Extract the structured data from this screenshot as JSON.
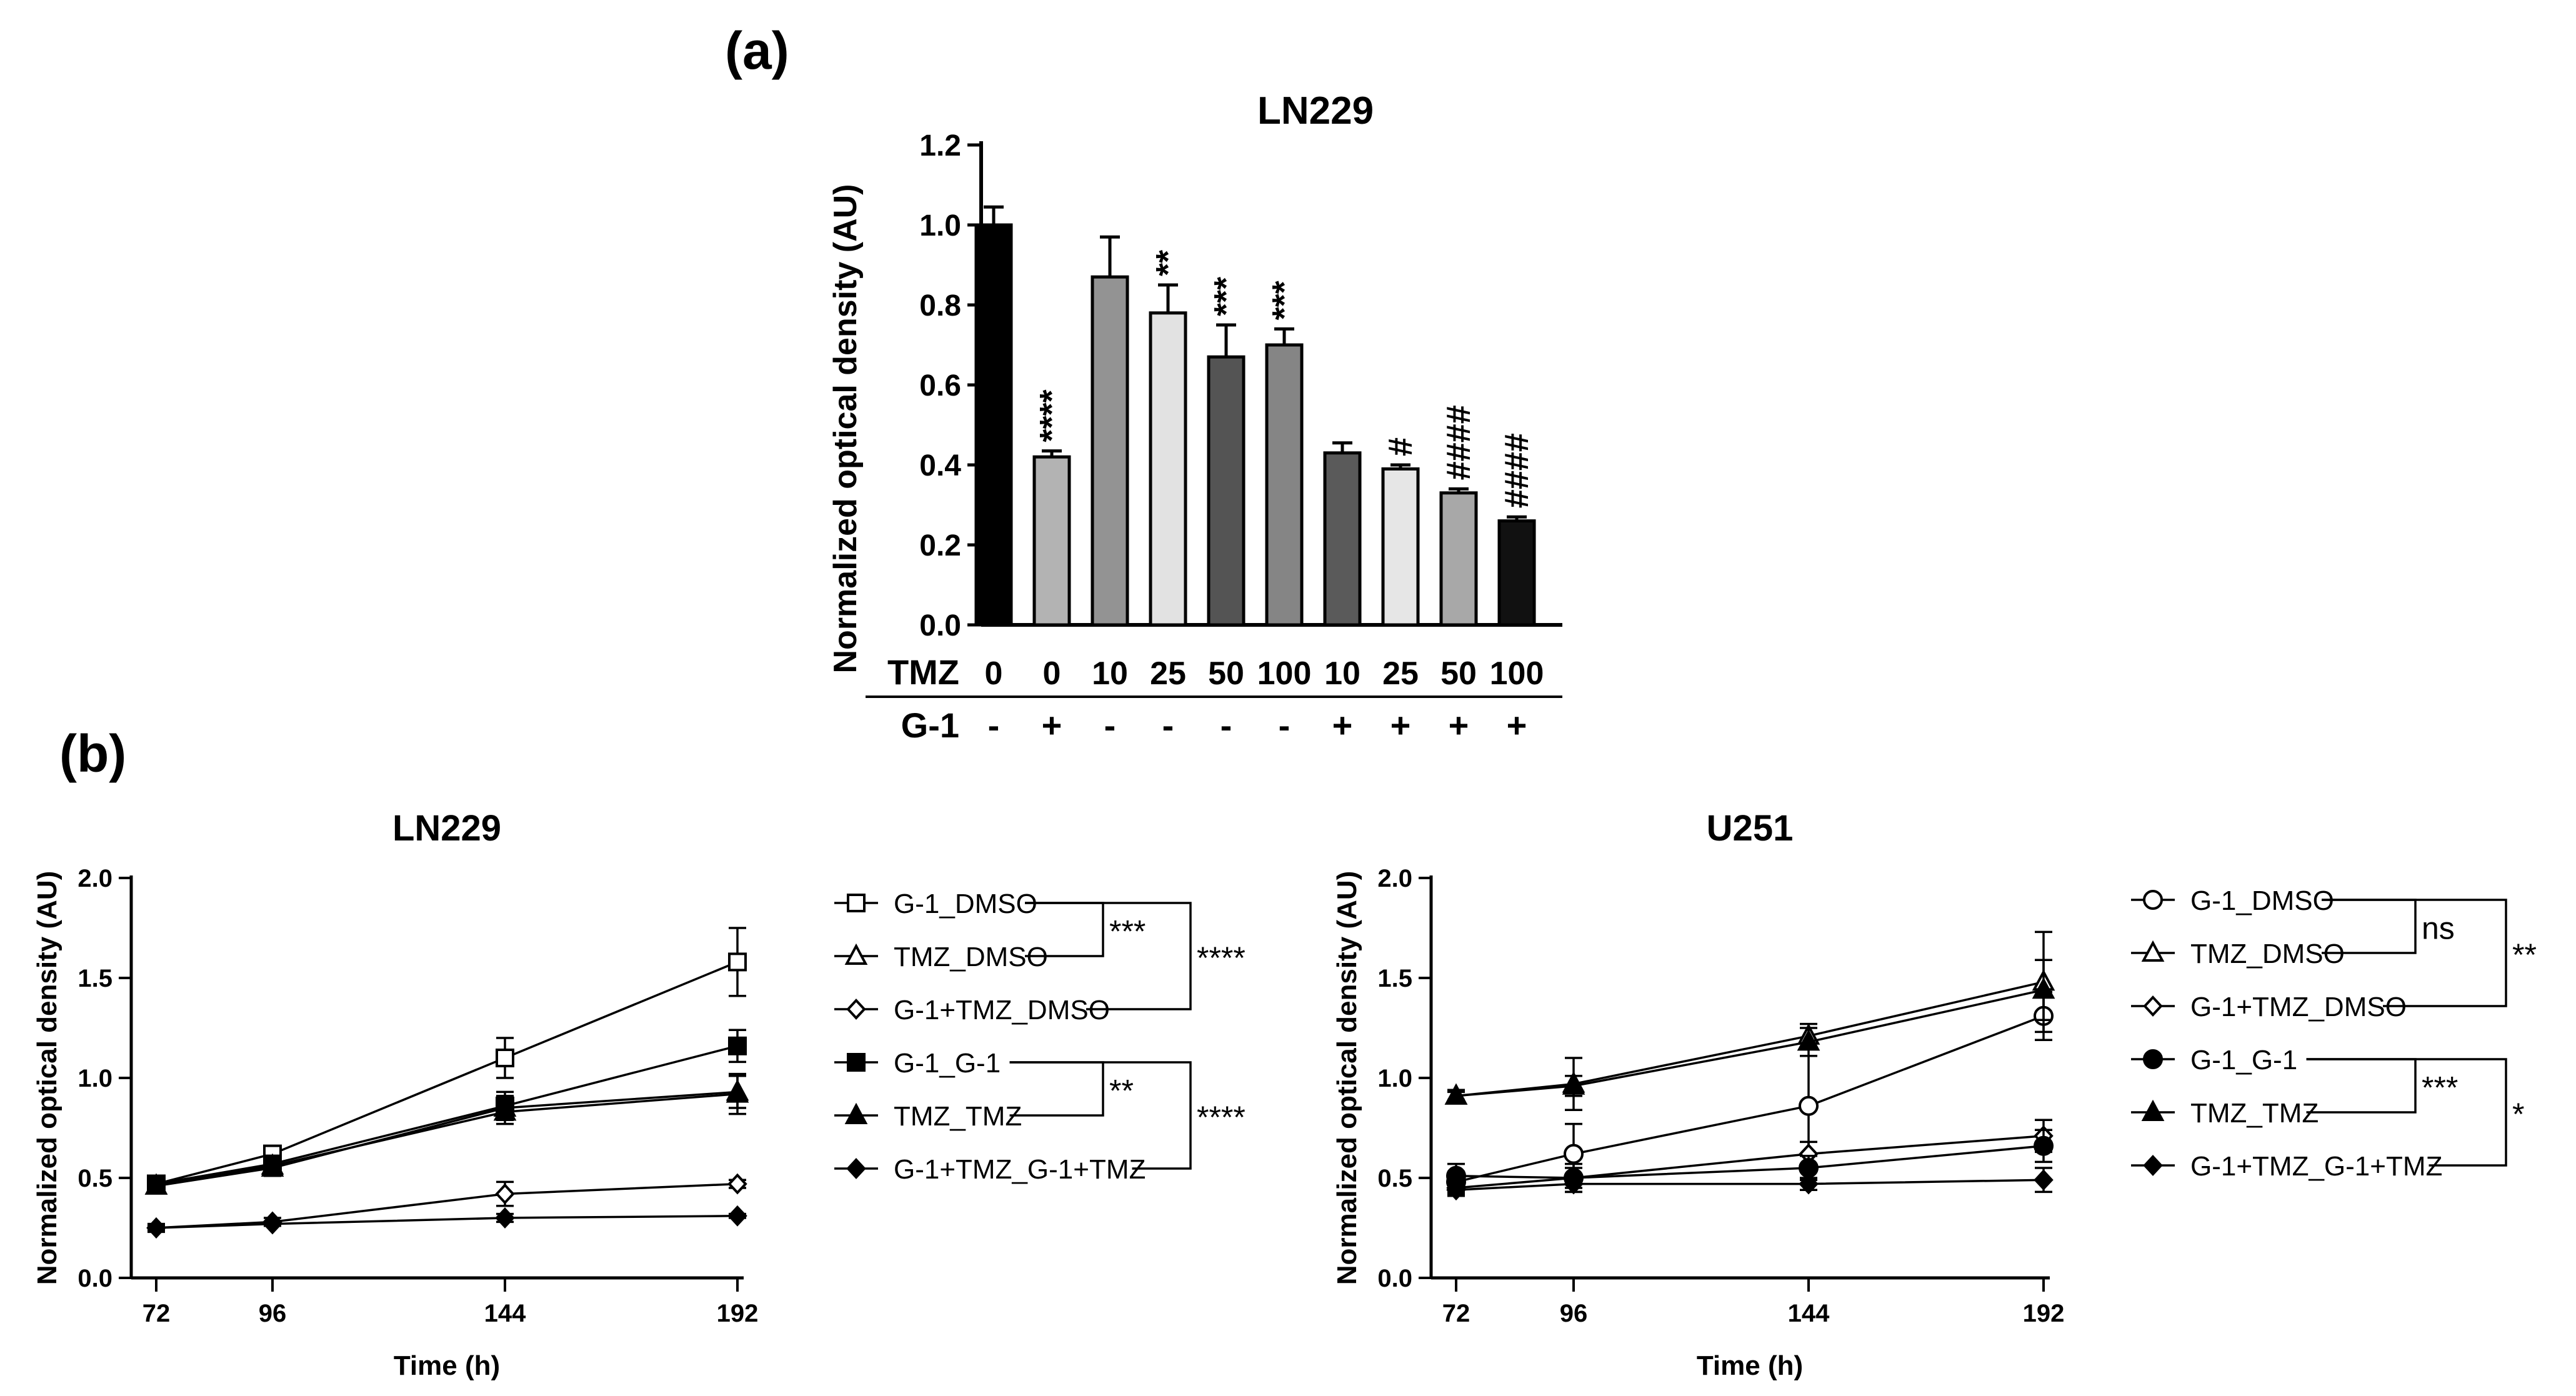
{
  "panel_a": {
    "label": "(a)"
  },
  "panel_b": {
    "label": "(b)"
  },
  "chart_data": [
    {
      "id": "a",
      "type": "bar",
      "title": "LN229",
      "ylabel": "Normalized optical density (AU)",
      "xlabel": "",
      "ylim": [
        0,
        1.2
      ],
      "yticks": [
        "0.0",
        "0.2",
        "0.4",
        "0.6",
        "0.8",
        "1.0",
        "1.2"
      ],
      "row_labels": [
        "TMZ",
        "G-1"
      ],
      "tmz": [
        "0",
        "0",
        "10",
        "25",
        "50",
        "100",
        "10",
        "25",
        "50",
        "100"
      ],
      "g1": [
        "-",
        "+",
        "-",
        "-",
        "-",
        "-",
        "+",
        "+",
        "+",
        "+"
      ],
      "values": [
        1.0,
        0.42,
        0.87,
        0.78,
        0.67,
        0.7,
        0.43,
        0.39,
        0.33,
        0.26
      ],
      "errors": [
        0.045,
        0.015,
        0.1,
        0.07,
        0.08,
        0.04,
        0.025,
        0.01,
        0.01,
        0.01
      ],
      "fills": [
        "#000000",
        "#b3b3b3",
        "#939393",
        "#e2e2e2",
        "#545454",
        "#858585",
        "#5a5a5a",
        "#e6e6e6",
        "#a8a8a8",
        "#111111"
      ],
      "annotations": [
        "",
        "****",
        "",
        "**",
        "***",
        "***",
        "",
        "#",
        "####",
        "####"
      ]
    },
    {
      "id": "b1",
      "type": "line",
      "title": "LN229",
      "xlabel": "Time (h)",
      "ylabel": "Normalized optical density (AU)",
      "x": [
        72,
        96,
        144,
        192
      ],
      "xticks": [
        "72",
        "96",
        "144",
        "192"
      ],
      "ylim": [
        0,
        2.0
      ],
      "yticks": [
        "0.0",
        "0.5",
        "1.0",
        "1.5",
        "2.0"
      ],
      "series": [
        {
          "name": "G-1_DMSO",
          "marker": "square-open",
          "values": [
            0.47,
            0.62,
            1.1,
            1.58
          ],
          "errors": [
            0.03,
            0.04,
            0.1,
            0.17
          ]
        },
        {
          "name": "TMZ_DMSO",
          "marker": "triangle-open",
          "values": [
            0.46,
            0.55,
            0.85,
            0.93
          ],
          "errors": [
            0.03,
            0.04,
            0.06,
            0.08
          ]
        },
        {
          "name": "G-1+TMZ_DMSO",
          "marker": "diamond-open",
          "values": [
            0.25,
            0.28,
            0.42,
            0.47
          ],
          "errors": [
            0.02,
            0.02,
            0.06,
            0.02
          ]
        },
        {
          "name": "G-1_G-1",
          "marker": "square-filled",
          "values": [
            0.47,
            0.57,
            0.86,
            1.16
          ],
          "errors": [
            0.03,
            0.04,
            0.07,
            0.08
          ]
        },
        {
          "name": "TMZ_TMZ",
          "marker": "triangle-filled",
          "values": [
            0.46,
            0.56,
            0.83,
            0.92
          ],
          "errors": [
            0.03,
            0.04,
            0.06,
            0.1
          ]
        },
        {
          "name": "G-1+TMZ_G-1+TMZ",
          "marker": "diamond-filled",
          "values": [
            0.25,
            0.27,
            0.3,
            0.31
          ],
          "errors": [
            0.01,
            0.01,
            0.02,
            0.01
          ]
        }
      ],
      "brackets": [
        {
          "rows": [
            0,
            1
          ],
          "label": "***"
        },
        {
          "rows": [
            0,
            2
          ],
          "label": "****"
        },
        {
          "rows": [
            3,
            4
          ],
          "label": "**"
        },
        {
          "rows": [
            3,
            5
          ],
          "label": "****"
        }
      ]
    },
    {
      "id": "b2",
      "type": "line",
      "title": "U251",
      "xlabel": "Time (h)",
      "ylabel": "Normalized optical density (AU)",
      "x": [
        72,
        96,
        144,
        192
      ],
      "xticks": [
        "72",
        "96",
        "144",
        "192"
      ],
      "ylim": [
        0,
        2.0
      ],
      "yticks": [
        "0.0",
        "0.5",
        "1.0",
        "1.5",
        "2.0"
      ],
      "series": [
        {
          "name": "G-1_DMSO",
          "marker": "circle-open",
          "values": [
            0.48,
            0.62,
            0.86,
            1.31
          ],
          "errors": [
            0.05,
            0.15,
            0.25,
            0.12
          ]
        },
        {
          "name": "TMZ_DMSO",
          "marker": "triangle-open",
          "values": [
            0.91,
            0.97,
            1.21,
            1.48
          ],
          "errors": [
            0.03,
            0.13,
            0.06,
            0.25
          ]
        },
        {
          "name": "G-1+TMZ_DMSO",
          "marker": "diamond-open",
          "values": [
            0.45,
            0.5,
            0.62,
            0.71
          ],
          "errors": [
            0.03,
            0.05,
            0.06,
            0.08
          ]
        },
        {
          "name": "G-1_G-1",
          "marker": "circle-filled",
          "values": [
            0.51,
            0.5,
            0.55,
            0.66
          ],
          "errors": [
            0.06,
            0.07,
            0.06,
            0.08
          ]
        },
        {
          "name": "TMZ_TMZ",
          "marker": "triangle-filled",
          "values": [
            0.91,
            0.96,
            1.18,
            1.44
          ],
          "errors": [
            0.02,
            0.05,
            0.07,
            0.15
          ]
        },
        {
          "name": "G-1+TMZ_G-1+TMZ",
          "marker": "diamond-filled",
          "values": [
            0.44,
            0.47,
            0.47,
            0.49
          ],
          "errors": [
            0.03,
            0.04,
            0.03,
            0.06
          ]
        }
      ],
      "brackets": [
        {
          "rows": [
            0,
            1
          ],
          "label": "ns"
        },
        {
          "rows": [
            0,
            2
          ],
          "label": "**"
        },
        {
          "rows": [
            3,
            4
          ],
          "label": "***"
        },
        {
          "rows": [
            3,
            5
          ],
          "label": "*"
        }
      ]
    }
  ]
}
